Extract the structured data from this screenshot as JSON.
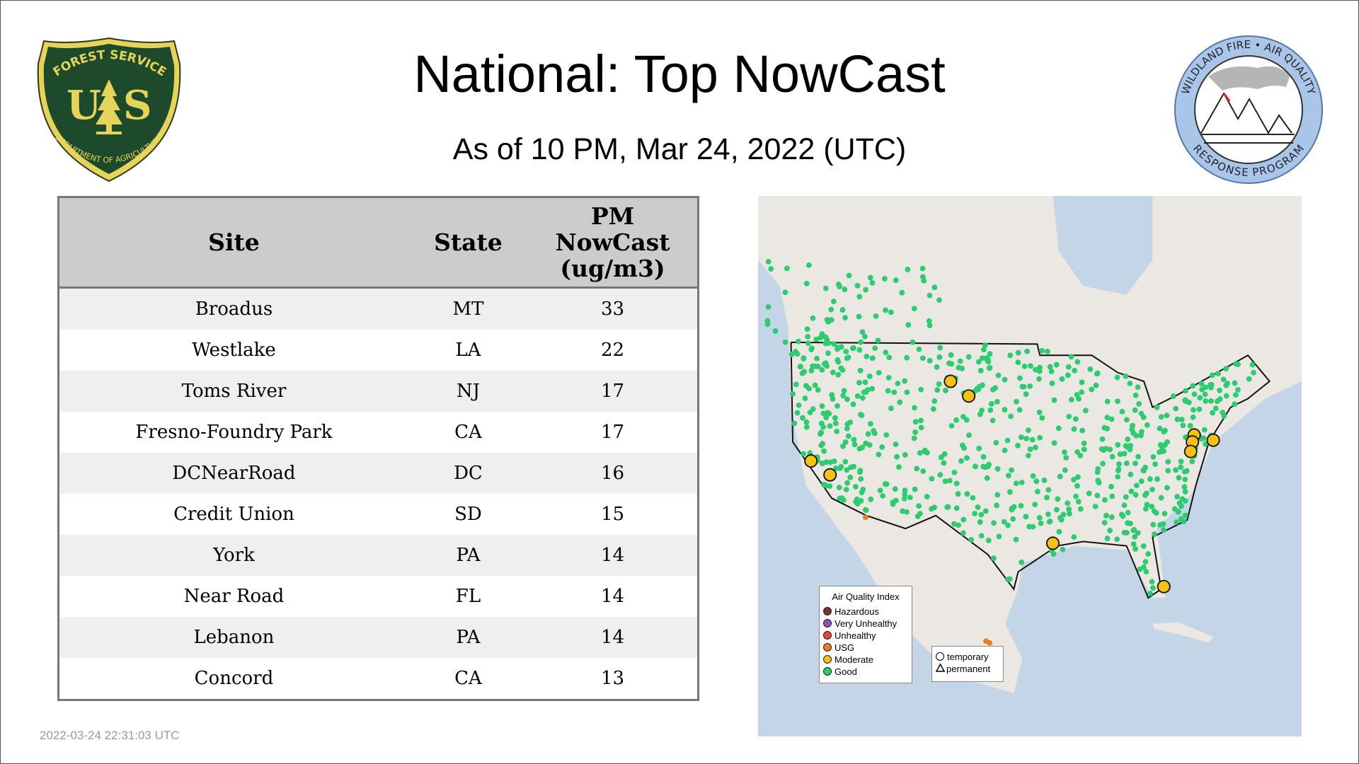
{
  "header": {
    "title": "National: Top NowCast",
    "subtitle": "As of 10 PM, Mar 24, 2022 (UTC)"
  },
  "logos": {
    "left": {
      "name": "forest-service-logo",
      "text_top": "FOREST SERVICE",
      "text_bottom": "DEPARTMENT OF AGRICULTURE",
      "letters": "U S",
      "colors": {
        "shield": "#1d4a2b",
        "accent": "#e6d45a"
      }
    },
    "right": {
      "name": "wildland-fire-air-quality-logo",
      "text_top": "WILDLAND FIRE • AIR QUALITY",
      "text_bottom": "RESPONSE PROGRAM",
      "colors": {
        "ring": "#a9c6e8"
      }
    }
  },
  "table": {
    "columns": [
      "Site",
      "State",
      "PM NowCast (ug/m3)"
    ],
    "column_lines": [
      [
        "Site"
      ],
      [
        "State"
      ],
      [
        "PM",
        "NowCast",
        "(ug/m3)"
      ]
    ],
    "rows": [
      [
        "Broadus",
        "MT",
        "33"
      ],
      [
        "Westlake",
        "LA",
        "22"
      ],
      [
        "Toms River",
        "NJ",
        "17"
      ],
      [
        "Fresno-Foundry Park",
        "CA",
        "17"
      ],
      [
        "DCNearRoad",
        "DC",
        "16"
      ],
      [
        "Credit Union",
        "SD",
        "15"
      ],
      [
        "York",
        "PA",
        "14"
      ],
      [
        "Near Road",
        "FL",
        "14"
      ],
      [
        "Lebanon",
        "PA",
        "14"
      ],
      [
        "Concord",
        "CA",
        "13"
      ]
    ]
  },
  "map": {
    "legend_title": "Air Quality Index",
    "legend": [
      {
        "label": "Hazardous",
        "color": "#7e3232"
      },
      {
        "label": "Very Unhealthy",
        "color": "#8f4fbf"
      },
      {
        "label": "Unhealthy",
        "color": "#e8453c"
      },
      {
        "label": "USG",
        "color": "#e67e22"
      },
      {
        "label": "Moderate",
        "color": "#f5c211"
      },
      {
        "label": "Good",
        "color": "#2ecc71"
      }
    ],
    "shape_legend": [
      {
        "label": "temporary",
        "icon": "circle-icon"
      },
      {
        "label": "permanent",
        "icon": "triangle-icon"
      }
    ],
    "colors": {
      "water": "#c3d5e6",
      "land": "#ebe7e2",
      "border": "#111111"
    }
  },
  "footer": {
    "timestamp": "2022-03-24 22:31:03 UTC"
  }
}
